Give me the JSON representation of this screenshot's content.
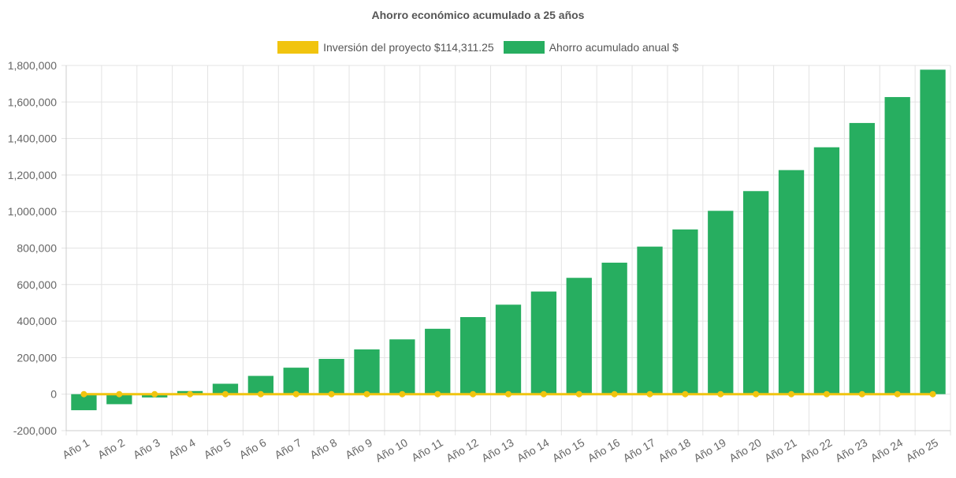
{
  "chart_data": {
    "type": "bar",
    "title": "Ahorro económico acumulado a 25 años",
    "xlabel": "",
    "ylabel": "",
    "categories": [
      "Año 1",
      "Año 2",
      "Año 3",
      "Año 4",
      "Año 5",
      "Año 6",
      "Año 7",
      "Año 8",
      "Año 9",
      "Año 10",
      "Año 11",
      "Año 12",
      "Año 13",
      "Año 14",
      "Año 15",
      "Año 16",
      "Año 17",
      "Año 18",
      "Año 19",
      "Año 20",
      "Año 21",
      "Año 22",
      "Año 23",
      "Año 24",
      "Año 25"
    ],
    "series": [
      {
        "name": "Inversión del proyecto $114,311.25",
        "type": "line",
        "color": "#f1c40f",
        "values": [
          0,
          0,
          0,
          0,
          0,
          0,
          0,
          0,
          0,
          0,
          0,
          0,
          0,
          0,
          0,
          0,
          0,
          0,
          0,
          0,
          0,
          0,
          0,
          0,
          0
        ]
      },
      {
        "name": "Ahorro acumulado anual $",
        "type": "bar",
        "color": "#27ae60",
        "values": [
          -88000,
          -55000,
          -18000,
          17000,
          57000,
          100000,
          145000,
          193000,
          245000,
          300000,
          358000,
          422000,
          490000,
          562000,
          637000,
          720000,
          808000,
          902000,
          1004000,
          1112000,
          1227000,
          1352000,
          1485000,
          1627000,
          1777000
        ]
      }
    ],
    "ylim": [
      -200000,
      1800000
    ],
    "yticks": [
      -200000,
      0,
      200000,
      400000,
      600000,
      800000,
      1000000,
      1200000,
      1400000,
      1600000,
      1800000
    ],
    "ytick_labels": [
      "-200,000",
      "0",
      "200,000",
      "400,000",
      "600,000",
      "800,000",
      "1,000,000",
      "1,200,000",
      "1,400,000",
      "1,600,000",
      "1,800,000"
    ],
    "grid": true,
    "legend_position": "top-center"
  }
}
